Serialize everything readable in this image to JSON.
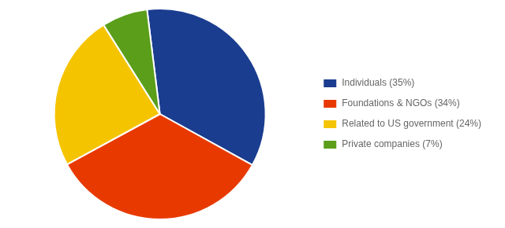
{
  "chart_data": {
    "type": "pie",
    "categories": [
      "Individuals (35%)",
      "Foundations & NGOs (34%)",
      "Related to US government (24%)",
      "Private companies (7%)"
    ],
    "values": [
      35,
      34,
      24,
      7
    ],
    "colors": [
      "#1a3d8f",
      "#e83a00",
      "#f5c400",
      "#5a9e1a"
    ],
    "legend": "right"
  }
}
